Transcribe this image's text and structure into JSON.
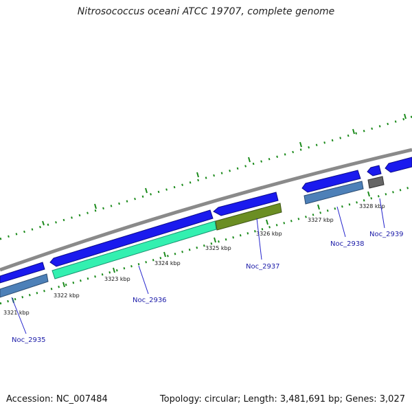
{
  "title": "Nitrosococcus oceani ATCC 19707, complete genome",
  "footer": {
    "accession": "Accession: NC_007484",
    "summary": "Topology: circular; Length: 3,481,691 bp; Genes: 3,027"
  },
  "colors": {
    "backbone": "#8a8a8a",
    "cds_blue": "#1a1aee",
    "gene_steelblue": "#4d80b8",
    "gene_aquamarine": "#33f0b0",
    "gene_olive": "#6b8e23",
    "gene_gray": "#666666",
    "tick_green": "#1a8a1a",
    "label_blue": "#1a1aa8",
    "leader_blue": "#2222cc"
  },
  "scale_ticks": [
    "3321 kbp",
    "3322 kbp",
    "3323 kbp",
    "3324 kbp",
    "3325 kbp",
    "3326 kbp",
    "3327 kbp",
    "3328 kbp"
  ],
  "gene_labels": [
    "Noc_2935",
    "Noc_2936",
    "Noc_2937",
    "Noc_2938",
    "Noc_2939"
  ]
}
